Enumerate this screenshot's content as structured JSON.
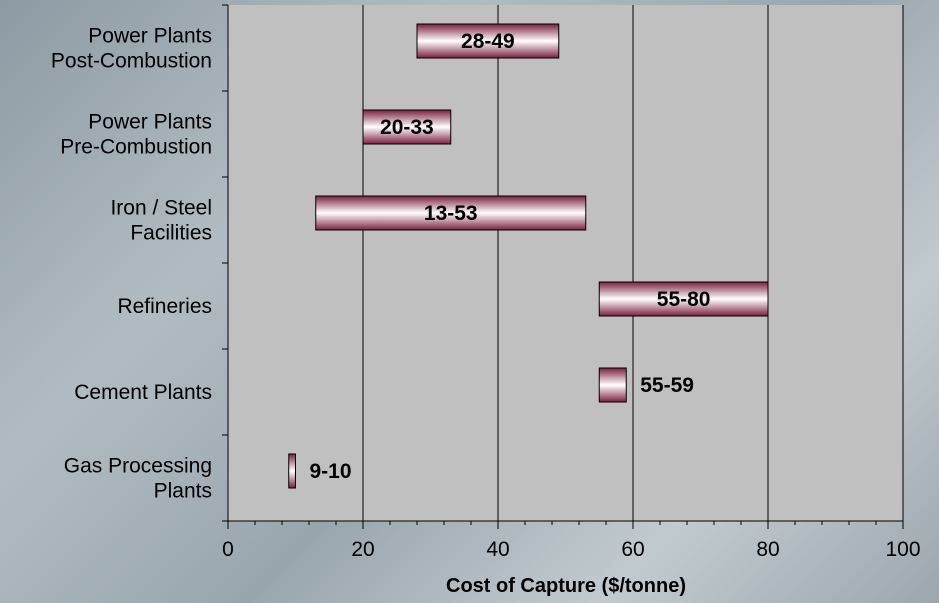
{
  "chart_data": {
    "type": "bar",
    "orientation": "horizontal",
    "range_bars": true,
    "title": "",
    "xlabel": "Cost of Capture ($/tonne)",
    "ylabel": "",
    "xlim": [
      0,
      100
    ],
    "x_ticks": [
      0,
      20,
      40,
      60,
      80,
      100
    ],
    "grid": "vertical",
    "categories": [
      [
        "Power Plants",
        "Post-Combustion"
      ],
      [
        "Power Plants",
        "Pre-Combustion"
      ],
      [
        "Iron / Steel",
        "Facilities"
      ],
      [
        "Refineries"
      ],
      [
        "Cement Plants"
      ],
      [
        "Gas Processing",
        "Plants"
      ]
    ],
    "ranges": [
      {
        "low": 28,
        "high": 49,
        "label": "28-49",
        "label_inside": true
      },
      {
        "low": 20,
        "high": 33,
        "label": "20-33",
        "label_inside": true
      },
      {
        "low": 13,
        "high": 53,
        "label": "13-53",
        "label_inside": true
      },
      {
        "low": 55,
        "high": 80,
        "label": "55-80",
        "label_inside": true
      },
      {
        "low": 55,
        "high": 59,
        "label": "55-59",
        "label_inside": false
      },
      {
        "low": 9,
        "high": 10,
        "label": "9-10",
        "label_inside": false
      }
    ],
    "colors": {
      "plot_bg": "#c0c0c0",
      "bar_dark": "#7a2040",
      "bar_light": "#ffffff",
      "grid": "#000000"
    }
  }
}
